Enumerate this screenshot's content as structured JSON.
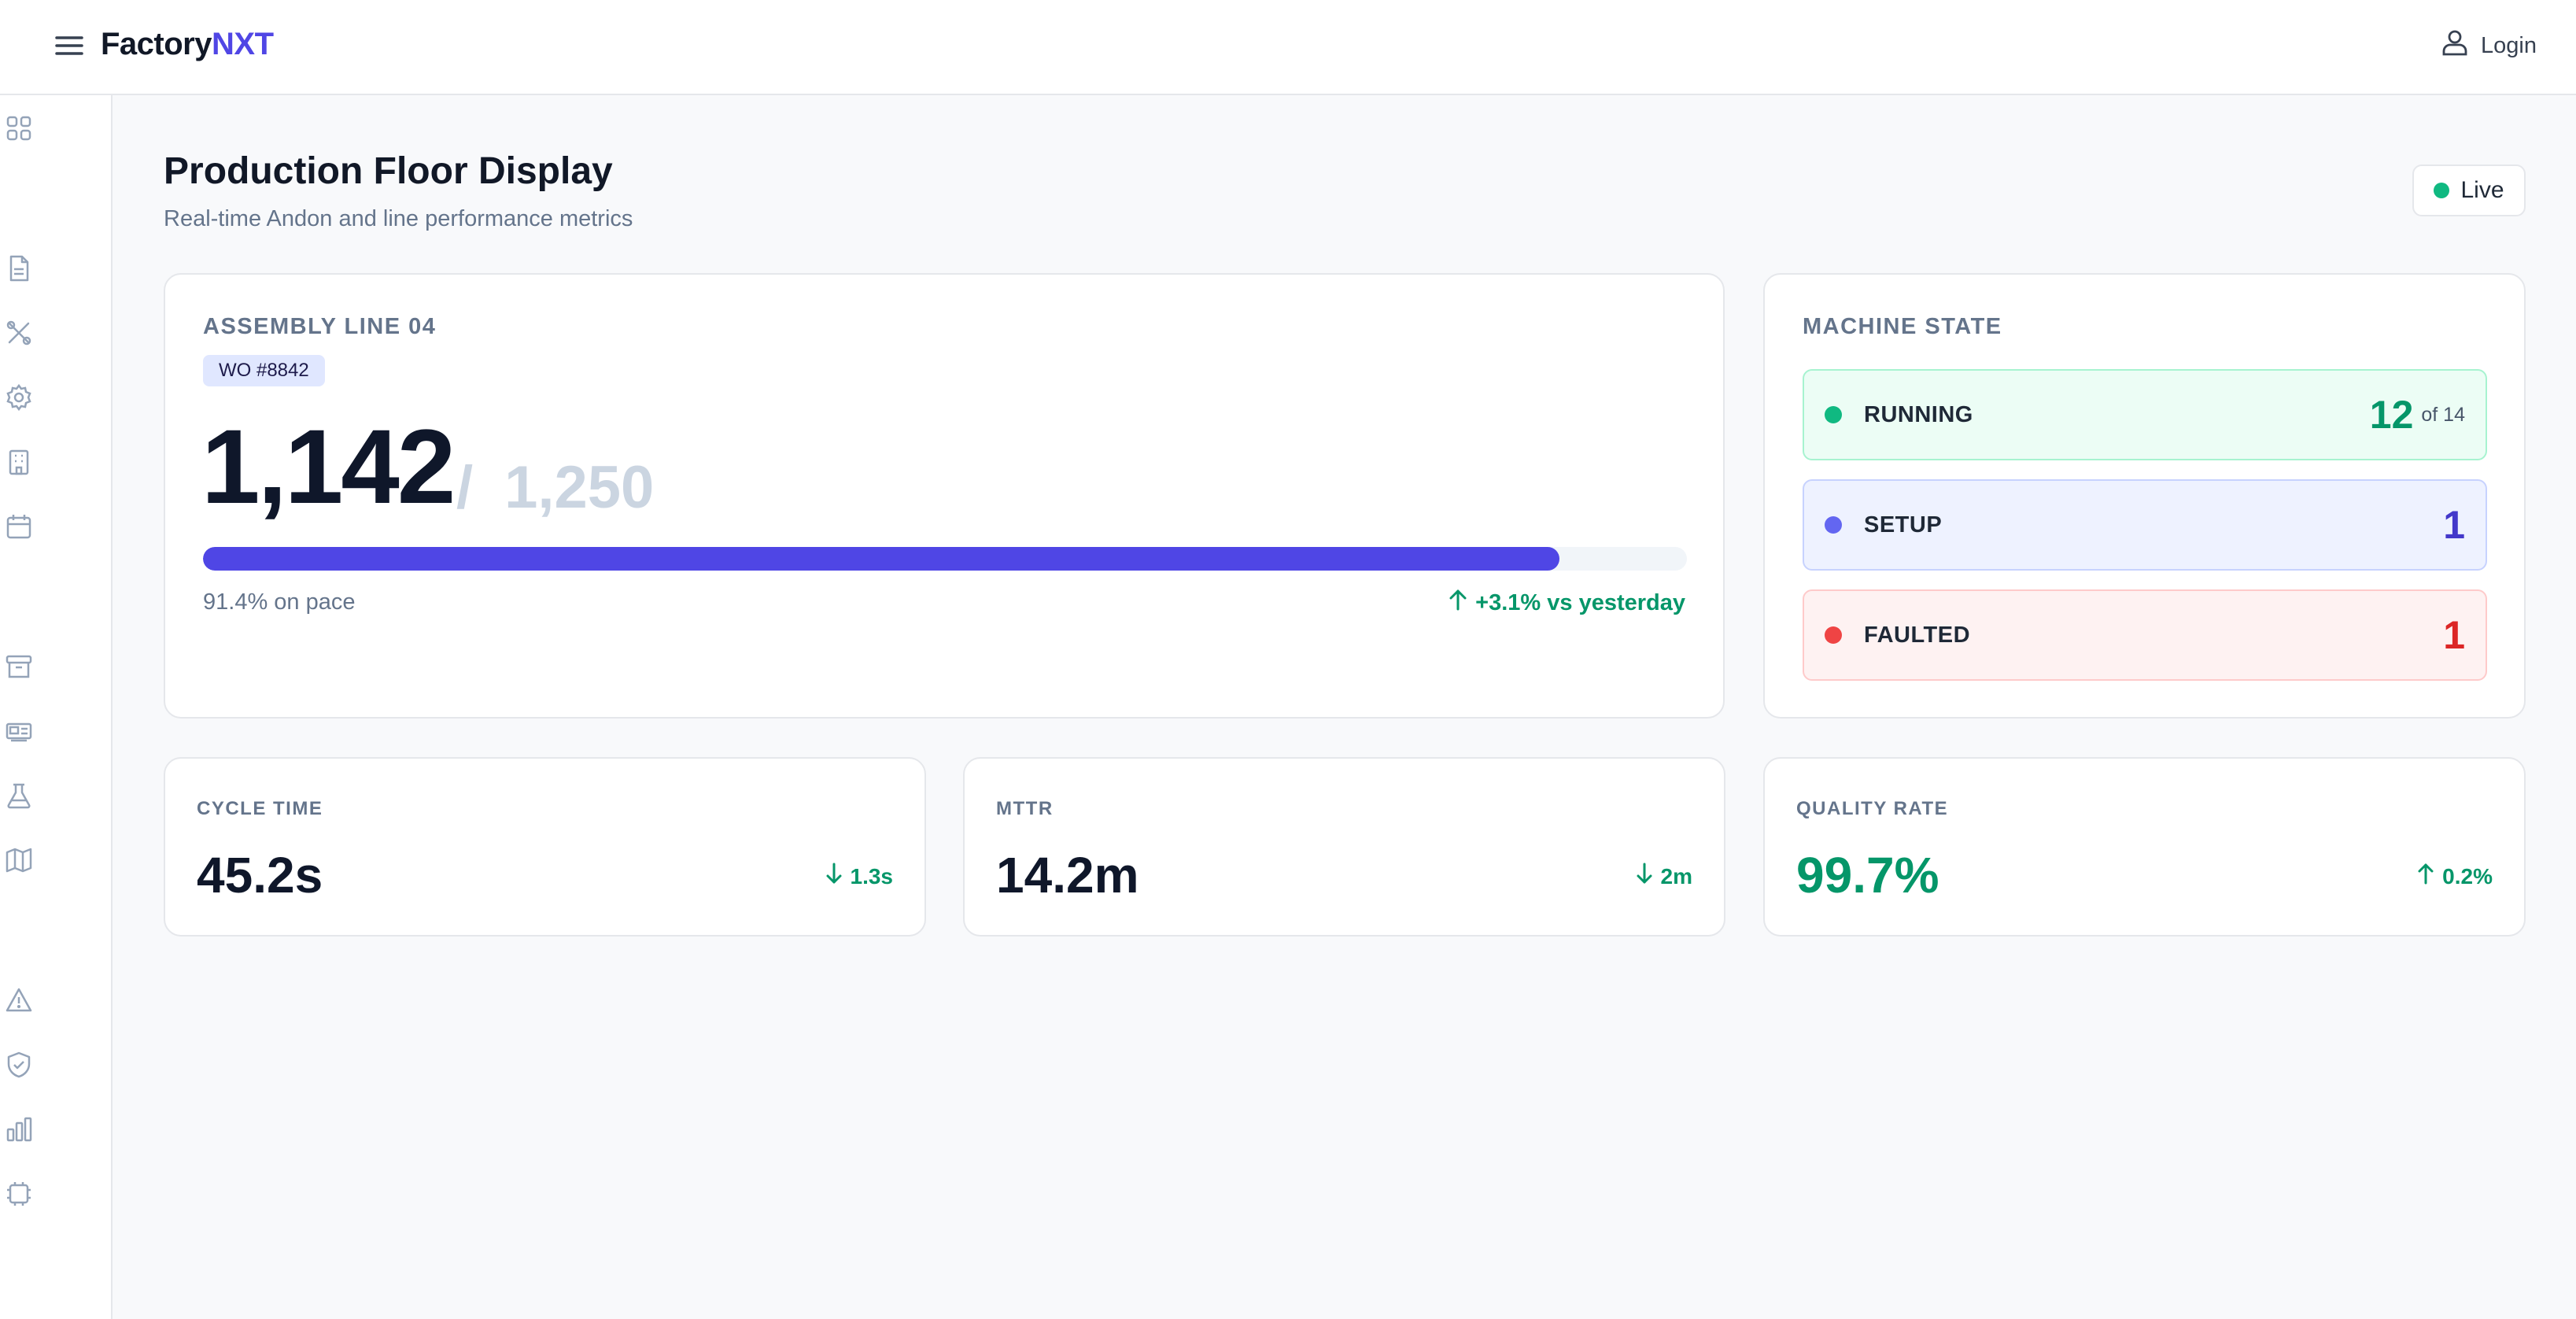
{
  "header": {
    "brand_primary": "Factory",
    "brand_accent": "NXT",
    "login_label": "Login"
  },
  "sidebar": {
    "icons": [
      "grid-icon",
      "document-icon",
      "tools-icon",
      "gear-icon",
      "building-icon",
      "calendar-icon",
      "archive-icon",
      "truck-icon",
      "flask-icon",
      "map-icon",
      "warning-icon",
      "shield-check-icon",
      "bar-chart-icon",
      "chip-icon"
    ]
  },
  "page": {
    "title": "Production Floor Display",
    "subtitle": "Real-time Andon and line performance metrics",
    "live_label": "Live"
  },
  "line": {
    "label": "ASSEMBLY LINE 04",
    "work_order": "WO #8842",
    "count": "1,142",
    "separator": "/",
    "target": "1,250",
    "progress_percent": 91.4,
    "pace_text": "91.4% on pace",
    "trend_text": "+3.1% vs yesterday"
  },
  "machine_state": {
    "label": "MACHINE STATE",
    "running": {
      "name": "RUNNING",
      "value": "12",
      "of": "of 14"
    },
    "setup": {
      "name": "SETUP",
      "value": "1"
    },
    "faulted": {
      "name": "FAULTED",
      "value": "1"
    }
  },
  "kpis": {
    "cycle_time": {
      "label": "CYCLE TIME",
      "value": "45.2s",
      "delta": "1.3s",
      "direction": "down"
    },
    "mttr": {
      "label": "MTTR",
      "value": "14.2m",
      "delta": "2m",
      "direction": "down"
    },
    "quality_rate": {
      "label": "QUALITY RATE",
      "value": "99.7%",
      "delta": "0.2%",
      "direction": "up"
    }
  },
  "colors": {
    "accent": "#4f46e5",
    "running": "#10b981",
    "running_text": "#059669",
    "setup": "#6366f1",
    "setup_text": "#4338ca",
    "faulted": "#ef4444",
    "faulted_text": "#dc2626",
    "quality_value": "#059669"
  }
}
